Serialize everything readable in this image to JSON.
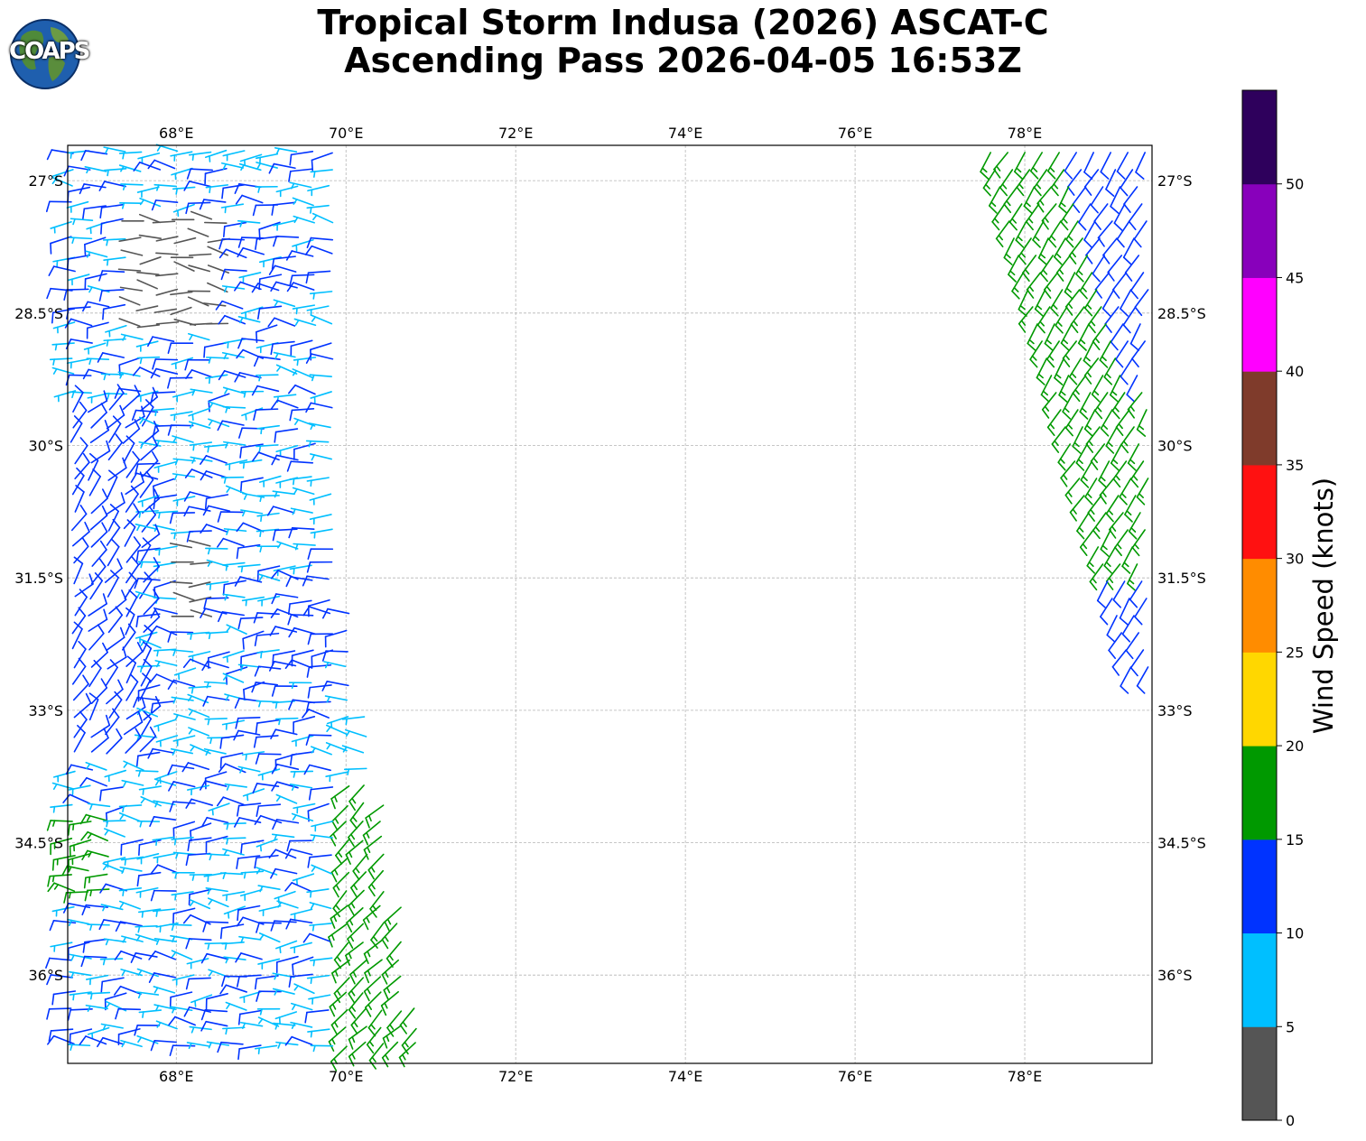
{
  "title": {
    "line1": "Tropical Storm Indusa (2026) ASCAT-C",
    "line2": "Ascending Pass 2026-04-05 16:53Z"
  },
  "logo": {
    "text": "COAPS",
    "icon": "globe-logo"
  },
  "map": {
    "lon_range": [
      66.72,
      79.5
    ],
    "lat_range": [
      -37.0,
      -26.6
    ],
    "lon_ticks": [
      {
        "value": 68,
        "label": "68°E"
      },
      {
        "value": 70,
        "label": "70°E"
      },
      {
        "value": 72,
        "label": "72°E"
      },
      {
        "value": 74,
        "label": "74°E"
      },
      {
        "value": 76,
        "label": "76°E"
      },
      {
        "value": 78,
        "label": "78°E"
      }
    ],
    "lat_ticks": [
      {
        "value": -27,
        "label": "27°S"
      },
      {
        "value": -28.5,
        "label": "28.5°S"
      },
      {
        "value": -30,
        "label": "30°S"
      },
      {
        "value": -31.5,
        "label": "31.5°S"
      },
      {
        "value": -33,
        "label": "33°S"
      },
      {
        "value": -34.5,
        "label": "34.5°S"
      },
      {
        "value": -36,
        "label": "36°S"
      }
    ],
    "gridlines": true
  },
  "colorbar": {
    "label": "Wind Speed (knots)",
    "levels": [
      0,
      5,
      10,
      15,
      20,
      25,
      30,
      35,
      40,
      45,
      50,
      55
    ],
    "colors": [
      "#555555",
      "#00bfff",
      "#0033ff",
      "#009900",
      "#ffd700",
      "#ff8c00",
      "#ff1111",
      "#7f3b2b",
      "#ff00ff",
      "#8800bb",
      "#2e005c"
    ],
    "tick_labels": [
      "0",
      "5",
      "10",
      "15",
      "20",
      "25",
      "30",
      "35",
      "40",
      "45",
      "50"
    ]
  }
}
